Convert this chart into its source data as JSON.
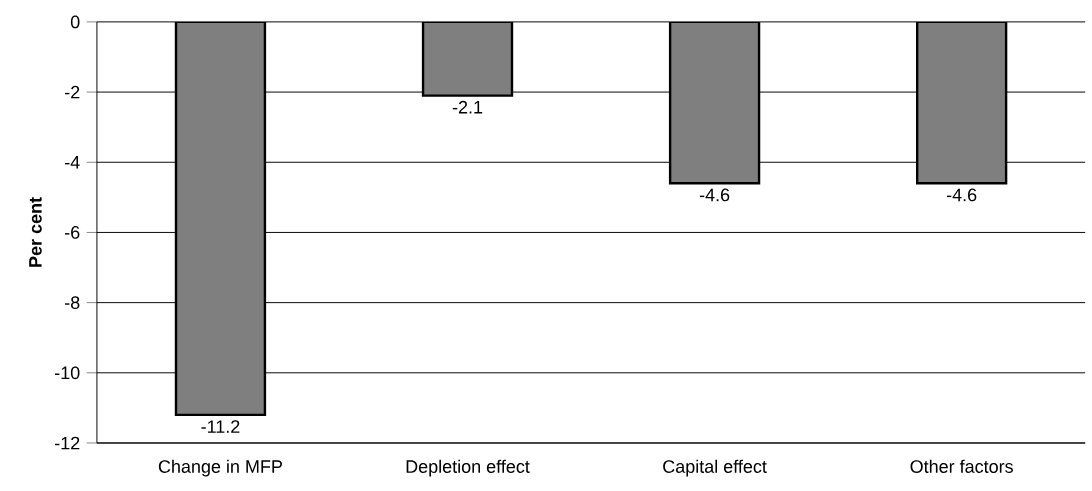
{
  "chart_data": {
    "type": "bar",
    "ylabel": "**Per cent**",
    "categories": [
      "Change in MFP",
      "Depletion effect",
      "Capital effect",
      "Other factors"
    ],
    "values": [
      -11.2,
      -2.1,
      -4.6,
      -4.6
    ],
    "color": "#7f7f7f",
    "ylim": [
      -12,
      0
    ],
    "yticks": [
      -12,
      -10,
      -8,
      -6,
      -4,
      -2,
      0
    ],
    "grid": "y",
    "data_labels": true
  }
}
